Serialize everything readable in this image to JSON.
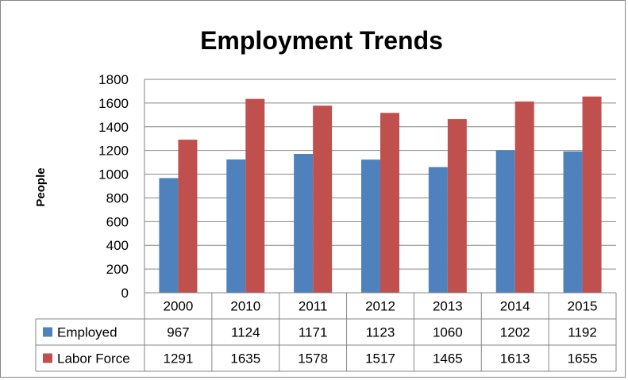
{
  "chart_data": {
    "type": "bar",
    "title": "Employment Trends",
    "ylabel": "People",
    "xlabel": "",
    "categories": [
      "2000",
      "2010",
      "2011",
      "2012",
      "2013",
      "2014",
      "2015"
    ],
    "series": [
      {
        "name": "Employed",
        "color": "#4F81BD",
        "values": [
          967,
          1124,
          1171,
          1123,
          1060,
          1202,
          1192
        ]
      },
      {
        "name": "Labor Force",
        "color": "#C0504D",
        "values": [
          1291,
          1635,
          1578,
          1517,
          1465,
          1613,
          1655
        ]
      }
    ],
    "ylim": [
      0,
      1800
    ],
    "yticks": [
      0,
      200,
      400,
      600,
      800,
      1000,
      1200,
      1400,
      1600,
      1800
    ],
    "grid": true,
    "legend": "data-table"
  }
}
